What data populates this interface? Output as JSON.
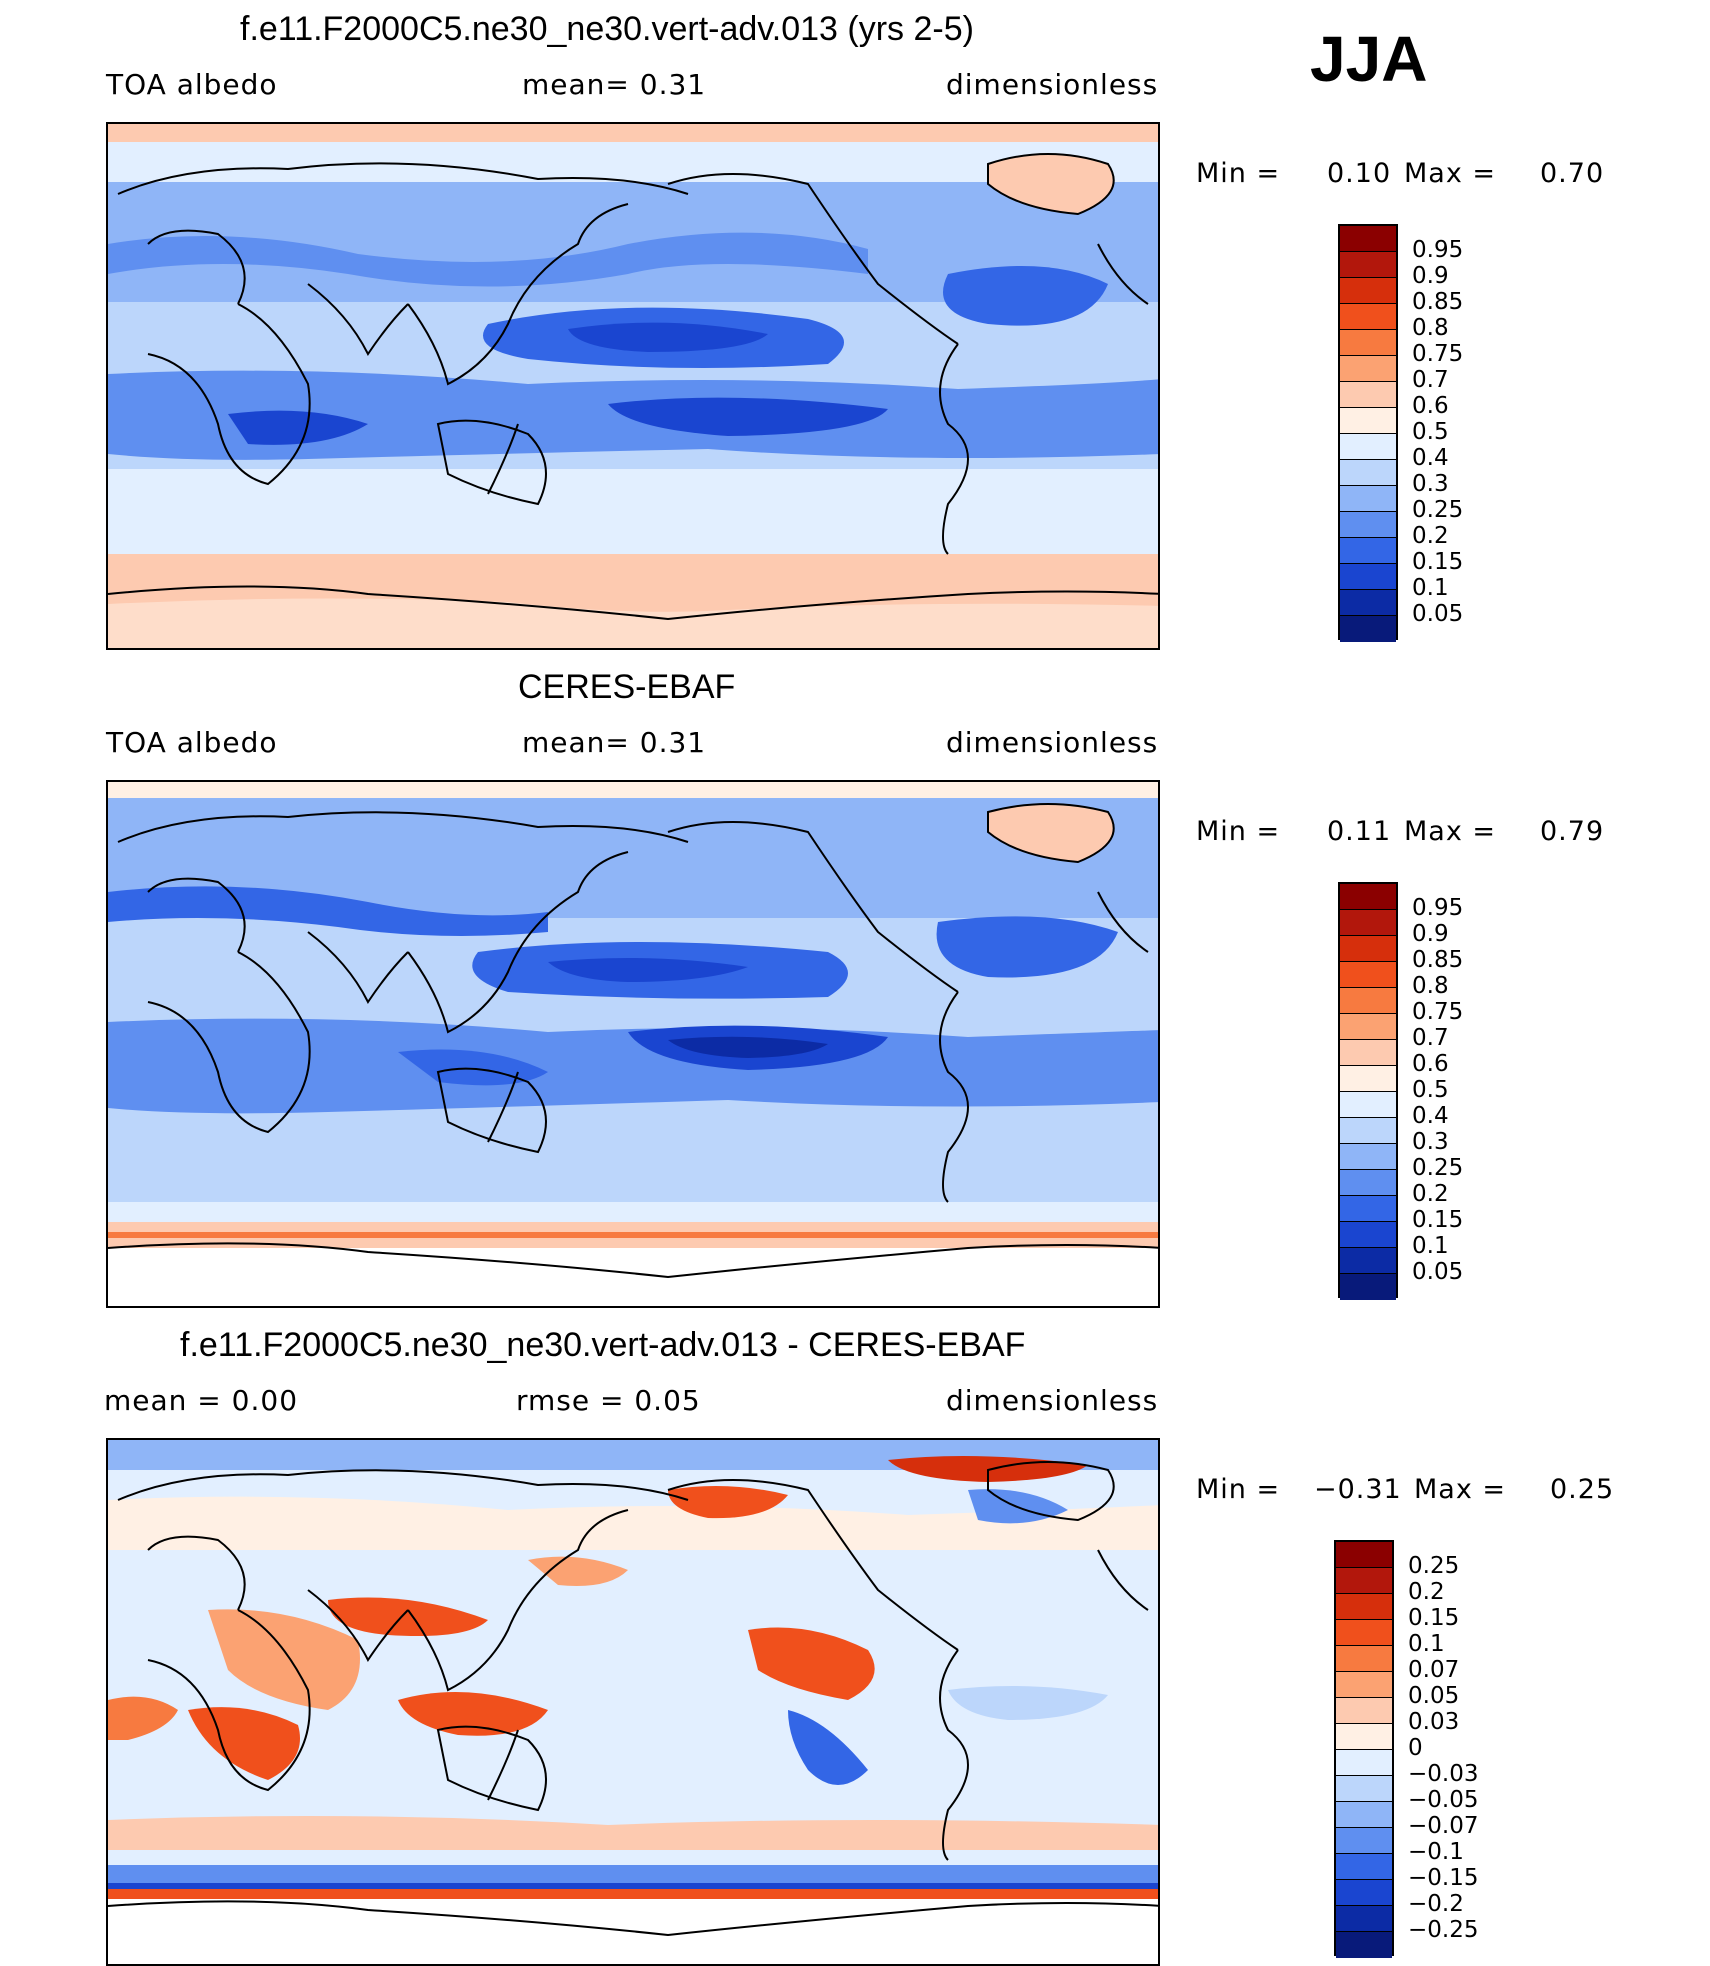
{
  "season": "JJA",
  "panels": [
    {
      "title": "f.e11.F2000C5.ne30_ne30.vert-adv.013 (yrs 2-5)",
      "left_label": "TOA  albedo",
      "center_label": "mean=     0.31",
      "right_label": "dimensionless",
      "min_label": "Min  =",
      "min_value": "0.10",
      "max_label": "Max  =",
      "max_value": "0.70",
      "colorbar_labels": [
        "0.95",
        "0.9",
        "0.85",
        "0.8",
        "0.75",
        "0.7",
        "0.6",
        "0.5",
        "0.4",
        "0.3",
        "0.25",
        "0.2",
        "0.15",
        "0.1",
        "0.05"
      ]
    },
    {
      "title": "CERES-EBAF",
      "left_label": "TOA  albedo",
      "center_label": "mean=     0.31",
      "right_label": "dimensionless",
      "min_label": "Min  =",
      "min_value": "0.11",
      "max_label": "Max  =",
      "max_value": "0.79",
      "colorbar_labels": [
        "0.95",
        "0.9",
        "0.85",
        "0.8",
        "0.75",
        "0.7",
        "0.6",
        "0.5",
        "0.4",
        "0.3",
        "0.25",
        "0.2",
        "0.15",
        "0.1",
        "0.05"
      ]
    },
    {
      "title": "f.e11.F2000C5.ne30_ne30.vert-adv.013 - CERES-EBAF",
      "left_label": "mean  =     0.00",
      "center_label": "rmse  =     0.05",
      "right_label": "dimensionless",
      "min_label": "Min  =",
      "min_value": "−0.31",
      "max_label": "Max  =",
      "max_value": "0.25",
      "colorbar_labels": [
        "0.25",
        "0.2",
        "0.15",
        "0.1",
        "0.07",
        "0.05",
        "0.03",
        "0",
        "−0.03",
        "−0.05",
        "−0.07",
        "−0.1",
        "−0.15",
        "−0.2",
        "−0.25"
      ]
    }
  ],
  "colorbar_colors": [
    "#8b0000",
    "#b2170c",
    "#d62f0c",
    "#f0501c",
    "#f77a40",
    "#fba272",
    "#fdcab0",
    "#fff0e4",
    "#e2efff",
    "#bcd6fb",
    "#8fb5f7",
    "#5f8ff0",
    "#3366e6",
    "#1a45d0",
    "#0c2ba5",
    "#081a7a"
  ],
  "chart_data": [
    {
      "type": "heatmap",
      "title": "f.e11.F2000C5.ne30_ne30.vert-adv.013 (yrs 2-5)",
      "variable": "TOA albedo",
      "units": "dimensionless",
      "mean": 0.31,
      "min": 0.1,
      "max": 0.7,
      "levels": [
        0.05,
        0.1,
        0.15,
        0.2,
        0.25,
        0.3,
        0.4,
        0.5,
        0.6,
        0.7,
        0.75,
        0.8,
        0.85,
        0.9,
        0.95
      ]
    },
    {
      "type": "heatmap",
      "title": "CERES-EBAF",
      "variable": "TOA albedo",
      "units": "dimensionless",
      "mean": 0.31,
      "min": 0.11,
      "max": 0.79,
      "levels": [
        0.05,
        0.1,
        0.15,
        0.2,
        0.25,
        0.3,
        0.4,
        0.5,
        0.6,
        0.7,
        0.75,
        0.8,
        0.85,
        0.9,
        0.95
      ]
    },
    {
      "type": "heatmap",
      "title": "f.e11.F2000C5.ne30_ne30.vert-adv.013 - CERES-EBAF",
      "units": "dimensionless",
      "mean": 0.0,
      "rmse": 0.05,
      "min": -0.31,
      "max": 0.25,
      "levels": [
        -0.25,
        -0.2,
        -0.15,
        -0.1,
        -0.07,
        -0.05,
        -0.03,
        0,
        0.03,
        0.05,
        0.07,
        0.1,
        0.15,
        0.2,
        0.25
      ]
    }
  ]
}
